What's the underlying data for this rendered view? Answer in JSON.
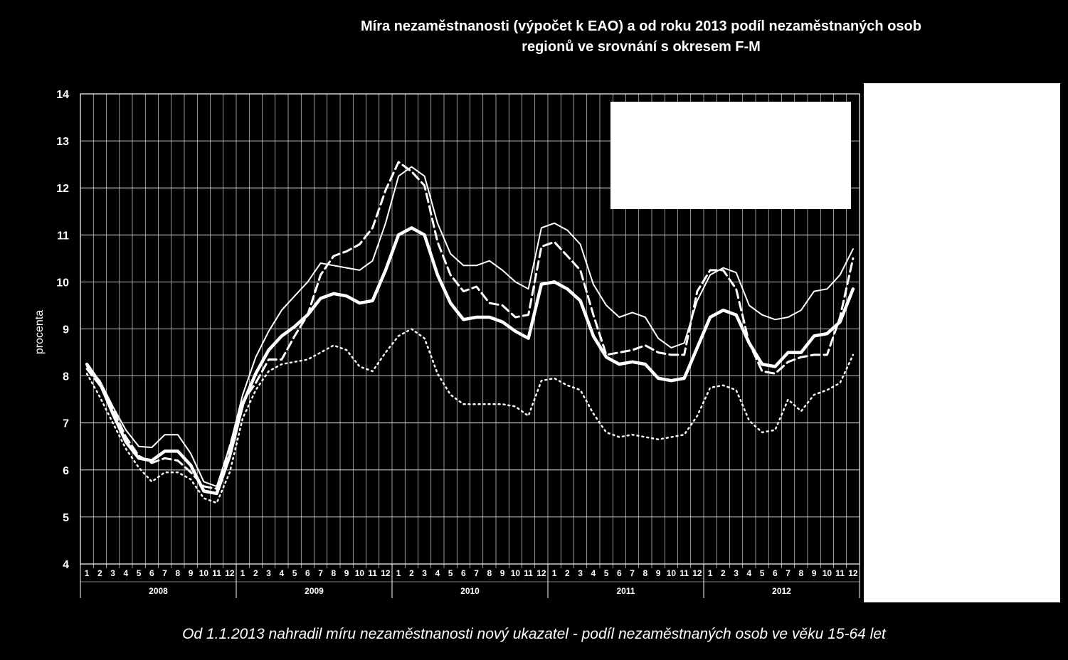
{
  "chart_data": {
    "type": "line",
    "title": "Míra nezaměstnanosti (výpočet k EAO) a od roku 2013 podíl nezaměstnaných osob regionů ve srovnání s okresem F-M",
    "title_lines": [
      "Míra nezaměstnanosti (výpočet k EAO) a od roku 2013 podíl nezaměstnaných osob",
      "regionů ve srovnání s okresem F-M"
    ],
    "ylabel": "procenta",
    "ylim": [
      4,
      14
    ],
    "yticks": [
      "4",
      "5",
      "6",
      "7",
      "8",
      "9",
      "10",
      "11",
      "12",
      "13",
      "14"
    ],
    "years": [
      "2008",
      "2009",
      "2010",
      "2011",
      "2012"
    ],
    "months": [
      "1",
      "2",
      "3",
      "4",
      "5",
      "6",
      "7",
      "8",
      "9",
      "10",
      "11",
      "12"
    ],
    "grid": "vertical-and-horizontal",
    "legend": "",
    "series": [
      {
        "style": "thin-solid",
        "values": [
          8.2,
          7.9,
          7.35,
          6.85,
          6.5,
          6.48,
          6.75,
          6.75,
          6.35,
          5.75,
          5.65,
          6.5,
          7.6,
          8.4,
          8.95,
          9.4,
          9.7,
          10.0,
          10.4,
          10.35,
          10.3,
          10.25,
          10.45,
          11.25,
          12.25,
          12.45,
          12.25,
          11.25,
          10.6,
          10.35,
          10.35,
          10.45,
          10.25,
          10.0,
          9.85,
          11.15,
          11.25,
          11.1,
          10.8,
          9.95,
          9.5,
          9.25,
          9.35,
          9.25,
          8.8,
          8.6,
          8.7,
          9.6,
          10.15,
          10.3,
          10.2,
          9.5,
          9.3,
          9.2,
          9.25,
          9.4,
          9.8,
          9.85,
          10.15,
          10.7
        ]
      },
      {
        "style": "thick-solid",
        "values": [
          8.25,
          7.85,
          7.2,
          6.6,
          6.25,
          6.2,
          6.4,
          6.4,
          6.1,
          5.55,
          5.5,
          6.3,
          7.4,
          8.05,
          8.55,
          8.85,
          9.05,
          9.3,
          9.65,
          9.75,
          9.7,
          9.55,
          9.6,
          10.25,
          11.0,
          11.15,
          11.0,
          10.15,
          9.55,
          9.2,
          9.25,
          9.25,
          9.15,
          8.95,
          8.8,
          9.95,
          10.0,
          9.85,
          9.6,
          8.85,
          8.4,
          8.25,
          8.3,
          8.25,
          7.95,
          7.9,
          7.95,
          8.6,
          9.25,
          9.4,
          9.3,
          8.7,
          8.25,
          8.2,
          8.5,
          8.5,
          8.85,
          8.9,
          9.15,
          9.85
        ]
      },
      {
        "style": "dashed",
        "values": [
          8.15,
          7.8,
          7.3,
          6.7,
          6.3,
          6.15,
          6.25,
          6.2,
          5.95,
          5.65,
          5.6,
          6.5,
          7.45,
          7.85,
          8.35,
          8.35,
          8.85,
          9.3,
          10.15,
          10.55,
          10.65,
          10.8,
          11.15,
          11.95,
          12.55,
          12.35,
          12.05,
          10.85,
          10.15,
          9.8,
          9.9,
          9.55,
          9.5,
          9.25,
          9.3,
          10.75,
          10.85,
          10.55,
          10.25,
          9.3,
          8.45,
          8.5,
          8.55,
          8.65,
          8.5,
          8.45,
          8.45,
          9.8,
          10.25,
          10.25,
          9.85,
          8.7,
          8.1,
          8.05,
          8.3,
          8.4,
          8.45,
          8.45,
          9.25,
          10.5
        ]
      },
      {
        "style": "dotted",
        "values": [
          8.05,
          7.55,
          7.0,
          6.45,
          6.05,
          5.75,
          5.95,
          5.95,
          5.8,
          5.4,
          5.3,
          5.95,
          7.1,
          7.7,
          8.1,
          8.25,
          8.3,
          8.35,
          8.5,
          8.65,
          8.55,
          8.2,
          8.1,
          8.5,
          8.85,
          9.0,
          8.8,
          8.05,
          7.6,
          7.4,
          7.4,
          7.4,
          7.4,
          7.35,
          7.15,
          7.9,
          7.95,
          7.8,
          7.7,
          7.2,
          6.8,
          6.7,
          6.75,
          6.7,
          6.65,
          6.7,
          6.75,
          7.15,
          7.75,
          7.8,
          7.7,
          7.05,
          6.8,
          6.85,
          7.5,
          7.25,
          7.6,
          7.7,
          7.85,
          8.45
        ]
      }
    ]
  },
  "footnote": "Od 1.1.2013 nahradil míru nezaměstnanosti nový ukazatel - podíl nezaměstnaných osob ve věku 15-64 let"
}
